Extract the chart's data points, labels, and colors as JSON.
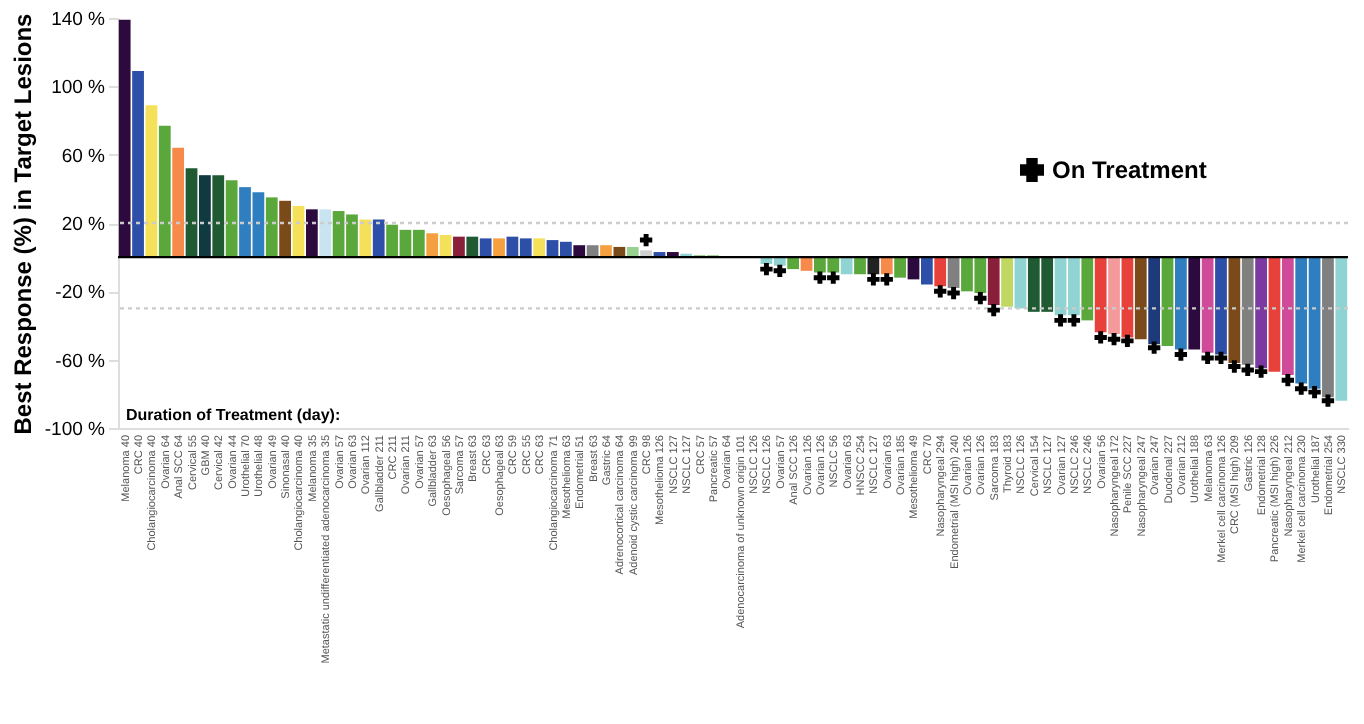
{
  "chart_data": {
    "type": "bar",
    "ylabel": "Best Response (%) in Target Lesions",
    "annotations": [
      "Duration of Treatment (day):"
    ],
    "categories": [
      "Melanoma 40",
      "CRC 40",
      "Cholangiocarcinoma 40",
      "Ovarian 64",
      "Anal SCC 64",
      "Cervical 55",
      "GBM 40",
      "Cervical 42",
      "Ovarian 44",
      "Urothelial 70",
      "Urothelial 48",
      "Ovarian 49",
      "Sinonasal 40",
      "Cholangiocarcinoma 40",
      "Melanoma 35",
      "Metastatic undifferentiated adenocarcinoma 35",
      "Ovarian 57",
      "Ovarian 63",
      "Ovarian 112",
      "Gallbladder 211",
      "CRC 211",
      "Ovarian 211",
      "Ovarian 57",
      "Gallbladder 63",
      "Oesophageal 56",
      "Sarcoma 57",
      "Breast 63",
      "CRC 63",
      "Oesophageal 63",
      "CRC 59",
      "CRC 55",
      "CRC 63",
      "Cholangiocarcinoma 71",
      "Mesothelioma 63",
      "Endometrial 51",
      "Breast 63",
      "Gastric 64",
      "Adrenocortical carcinoma 64",
      "Adenoid cystic carcinoma 99",
      "CRC 98",
      "Mesothelioma 126",
      "NSCLC 127",
      "NSCLC 127",
      "CRC 57",
      "Pancreatic 57",
      "Ovarian 64",
      "Adenocarcinoma of unknown origin 101",
      "NSCLC 126",
      "NSCLC 126",
      "Ovarian 57",
      "Anal SCC 126",
      "Ovarian 126",
      "Ovarian 126",
      "NSCLC 56",
      "Ovarian 63",
      "HNSCC 254",
      "NSCLC 127",
      "Ovarian 63",
      "Ovarian 185",
      "Mesothelioma 49",
      "CRC 70",
      "Nasopharyngeal 294",
      "Endometrial (MSI high) 240",
      "Ovarian 126",
      "Ovarian 126",
      "Sarcoma 183",
      "Thyroid 183",
      "NSCLC 126",
      "Cervical 154",
      "NSCLC 127",
      "Ovarian 127",
      "NSCLC 246",
      "NSCLC 246",
      "Ovarian 56",
      "Nasopharyngeal 172",
      "Penile SCC 227",
      "Nasopharyngeal 247",
      "Ovarian 247",
      "Duodenal 227",
      "Ovarian 212",
      "Urothelial 188",
      "Melanoma 63",
      "Merkel cell carcinoma 126",
      "CRC (MSI high) 209",
      "Gastric 126",
      "Endometrial 128",
      "Pancreatic (MSI high) 226",
      "Nasopharyngeal 212",
      "Merkel cell carcinoma 230",
      "Urothelial 187",
      "Endometrial 254",
      "NSCLC 330"
    ],
    "series": [
      {
        "colors": [
          "#2d0a3e",
          "#2e4fa8",
          "#f5e05a",
          "#5aa83c",
          "#f58a4a",
          "#1f5a32",
          "#0f3a40",
          "#1f5a32",
          "#5aa83c",
          "#2f7fc0",
          "#2f7fc0",
          "#5aa83c",
          "#7a4a1a",
          "#f5e05a",
          "#2d0a3e",
          "#c8e4f0",
          "#5aa83c",
          "#5aa83c",
          "#f5e05a",
          "#2e4fa8",
          "#5aa83c",
          "#5aa83c",
          "#5aa83c",
          "#f5a040",
          "#f5e05a",
          "#8a1f3c",
          "#1f5a32",
          "#2e4fa8",
          "#f5a040",
          "#2e4fa8",
          "#2e4fa8",
          "#f5e05a",
          "#2e4fa8",
          "#2e4fa8",
          "#2d0a3e",
          "#808080",
          "#f5a040",
          "#7a4a1a",
          "#98d090",
          "#d0d0d0",
          "#2e4fa8",
          "#2d0a3e",
          "#8fd3d3",
          "#5aa83c",
          "#5aa83c",
          "#5aa83c",
          "#5aa83c",
          "#5aa83c",
          "#8fd3d3",
          "#8fd3d3",
          "#5aa83c",
          "#f58a4a",
          "#5aa83c",
          "#5aa83c",
          "#8fd3d3",
          "#5aa83c",
          "#222222",
          "#f58a4a",
          "#5aa83c",
          "#2d0a3e",
          "#2e4fa8",
          "#e8403a",
          "#808080",
          "#5aa83c",
          "#5aa83c",
          "#8a1f3c",
          "#c0d860",
          "#8fd3d3",
          "#1f5a32",
          "#1f5a32",
          "#8fd3d3",
          "#8fd3d3",
          "#5aa83c",
          "#e8403a",
          "#f59a9a",
          "#e8403a",
          "#7a4a1a",
          "#1f3a7a",
          "#5aa83c",
          "#2f7fc0",
          "#2d0a3e",
          "#d04a9a",
          "#2e4fa8",
          "#7a4a1a",
          "#808080",
          "#7a3aa0",
          "#e8403a",
          "#d04a9a",
          "#2f7fc0",
          "#2f7fc0",
          "#808080",
          "#8fd3d3"
        ],
        "values": [
          139,
          109,
          89,
          77,
          64,
          52,
          48,
          48,
          45,
          41,
          38,
          35,
          33,
          30,
          28,
          28,
          27,
          25,
          22,
          22,
          19,
          16,
          16,
          14,
          13,
          12,
          12,
          11,
          11,
          12,
          11,
          11,
          10,
          9,
          7,
          7,
          7,
          6,
          6,
          4,
          3,
          3,
          2,
          1,
          1,
          0,
          0,
          0,
          -4,
          -5,
          -7,
          -8,
          -9,
          -9,
          -10,
          -10,
          -10,
          -10,
          -12,
          -13,
          -16,
          -17,
          -18,
          -20,
          -21,
          -28,
          -29,
          -30,
          -32,
          -32,
          -34,
          -34,
          -37,
          -44,
          -45,
          -47,
          -48,
          -51,
          -52,
          -54,
          -54,
          -56,
          -57,
          -62,
          -63,
          -65,
          -67,
          -69,
          -74,
          -77,
          -82,
          -84
        ]
      },
      {
        "type": "scatter",
        "name": "On Treatment",
        "color": "#000000",
        "marker": "cross",
        "values": [
          null,
          null,
          null,
          null,
          null,
          null,
          null,
          null,
          null,
          null,
          null,
          null,
          null,
          null,
          null,
          null,
          null,
          null,
          null,
          null,
          null,
          null,
          null,
          null,
          null,
          null,
          null,
          null,
          null,
          null,
          null,
          null,
          null,
          null,
          null,
          null,
          null,
          null,
          null,
          10,
          null,
          null,
          null,
          null,
          null,
          null,
          null,
          null,
          -7,
          -8,
          null,
          null,
          -12,
          -12,
          null,
          null,
          -13,
          -13,
          null,
          null,
          null,
          -20,
          -21,
          null,
          -24,
          -31,
          null,
          null,
          null,
          null,
          -37,
          -37,
          null,
          -47,
          -48,
          -49,
          null,
          -53,
          null,
          -57,
          null,
          -59,
          -59,
          -64,
          -66,
          -67,
          null,
          -72,
          -77,
          -79,
          -84,
          null
        ]
      }
    ],
    "ylim": [
      -100,
      140
    ],
    "yticks": [
      {
        "value": 140,
        "label": "140 %"
      },
      {
        "value": 100,
        "label": "100 %"
      },
      {
        "value": 60,
        "label": "60 %"
      },
      {
        "value": 20,
        "label": "20 %"
      },
      {
        "value": -20,
        "label": "-20 %"
      },
      {
        "value": -60,
        "label": "-60 %"
      },
      {
        "value": -100,
        "label": "-100 %"
      }
    ],
    "ref_lines": [
      {
        "axis": "y",
        "value": 20,
        "color": "#cccccc",
        "line_style": "dotted"
      },
      {
        "axis": "y",
        "value": -30,
        "color": "#cccccc",
        "line_style": "dotted"
      },
      {
        "axis": "y",
        "value": 0,
        "color": "#000000",
        "line_style": "solid"
      }
    ],
    "legend": "top right"
  }
}
